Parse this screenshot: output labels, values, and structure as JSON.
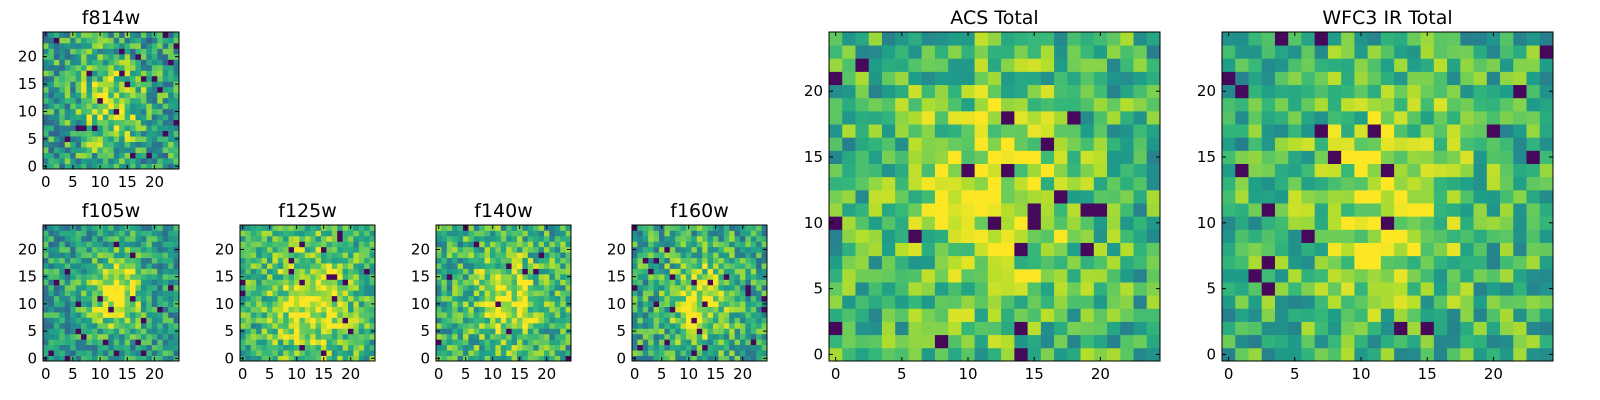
{
  "chart_data": [
    {
      "type": "heatmap",
      "title": "f814w",
      "xticks": [
        "0",
        "5",
        "10",
        "15",
        "20"
      ],
      "yticks": [
        "0",
        "5",
        "10",
        "15",
        "20"
      ],
      "xlim": [
        -0.5,
        24.5
      ],
      "ylim": [
        -0.5,
        24.5
      ],
      "grid": false,
      "colormap": "viridis",
      "grid_size": [
        25,
        25
      ],
      "seed": 11,
      "center": [
        12,
        11
      ],
      "peak": 0.35,
      "spread": 3.5,
      "noise": 0.55,
      "base": 0.55
    },
    {
      "type": "heatmap",
      "title": "f105w",
      "xticks": [
        "0",
        "5",
        "10",
        "15",
        "20"
      ],
      "yticks": [
        "0",
        "5",
        "10",
        "15",
        "20"
      ],
      "xlim": [
        -0.5,
        24.5
      ],
      "ylim": [
        -0.5,
        24.5
      ],
      "grid": false,
      "colormap": "viridis",
      "grid_size": [
        25,
        25
      ],
      "seed": 23,
      "center": [
        13,
        12
      ],
      "peak": 0.45,
      "spread": 2.8,
      "noise": 0.45,
      "base": 0.55
    },
    {
      "type": "heatmap",
      "title": "f125w",
      "xticks": [
        "0",
        "5",
        "10",
        "15",
        "20"
      ],
      "yticks": [
        "0",
        "5",
        "10",
        "15",
        "20"
      ],
      "xlim": [
        -0.5,
        24.5
      ],
      "ylim": [
        -0.5,
        24.5
      ],
      "grid": false,
      "colormap": "viridis",
      "grid_size": [
        25,
        25
      ],
      "seed": 37,
      "center": [
        13,
        10
      ],
      "peak": 0.3,
      "spread": 4.0,
      "noise": 0.45,
      "base": 0.65
    },
    {
      "type": "heatmap",
      "title": "f140w",
      "xticks": [
        "0",
        "5",
        "10",
        "15",
        "20"
      ],
      "yticks": [
        "0",
        "5",
        "10",
        "15",
        "20"
      ],
      "xlim": [
        -0.5,
        24.5
      ],
      "ylim": [
        -0.5,
        24.5
      ],
      "grid": false,
      "colormap": "viridis",
      "grid_size": [
        25,
        25
      ],
      "seed": 41,
      "center": [
        13,
        11
      ],
      "peak": 0.3,
      "spread": 3.5,
      "noise": 0.5,
      "base": 0.62
    },
    {
      "type": "heatmap",
      "title": "f160w",
      "xticks": [
        "0",
        "5",
        "10",
        "15",
        "20"
      ],
      "yticks": [
        "0",
        "5",
        "10",
        "15",
        "20"
      ],
      "xlim": [
        -0.5,
        24.5
      ],
      "ylim": [
        -0.5,
        24.5
      ],
      "grid": false,
      "colormap": "viridis",
      "grid_size": [
        25,
        25
      ],
      "seed": 53,
      "center": [
        12,
        11
      ],
      "peak": 0.35,
      "spread": 3.0,
      "noise": 0.5,
      "base": 0.6
    },
    {
      "type": "heatmap",
      "title": "ACS Total",
      "xticks": [
        "0",
        "5",
        "10",
        "15",
        "20"
      ],
      "yticks": [
        "0",
        "5",
        "10",
        "15",
        "20"
      ],
      "xlim": [
        -0.5,
        24.5
      ],
      "ylim": [
        -0.5,
        24.5
      ],
      "grid": false,
      "colormap": "viridis",
      "grid_size": [
        25,
        25
      ],
      "seed": 67,
      "center": [
        12,
        12
      ],
      "peak": 0.3,
      "spread": 3.5,
      "noise": 0.45,
      "base": 0.65
    },
    {
      "type": "heatmap",
      "title": "WFC3 IR Total",
      "xticks": [
        "0",
        "5",
        "10",
        "15",
        "20"
      ],
      "yticks": [
        "0",
        "5",
        "10",
        "15",
        "20"
      ],
      "xlim": [
        -0.5,
        24.5
      ],
      "ylim": [
        -0.5,
        24.5
      ],
      "grid": false,
      "colormap": "viridis",
      "grid_size": [
        25,
        25
      ],
      "seed": 79,
      "center": [
        12,
        12
      ],
      "peak": 0.3,
      "spread": 3.0,
      "noise": 0.45,
      "base": 0.65
    }
  ]
}
